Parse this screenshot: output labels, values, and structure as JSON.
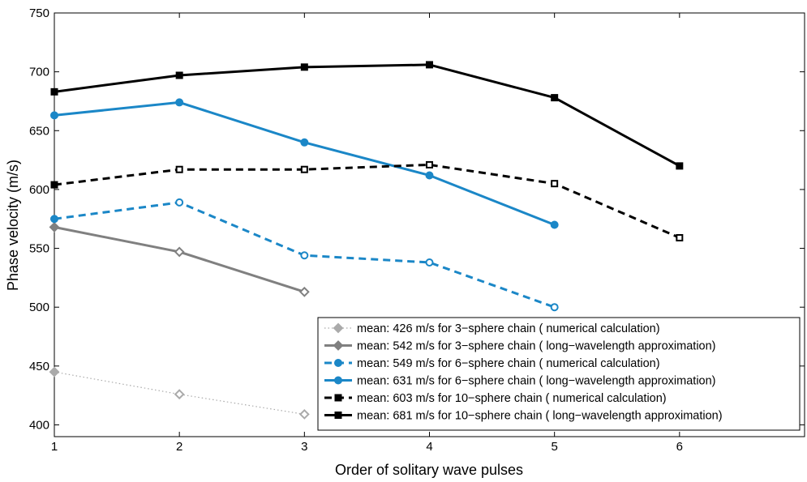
{
  "chart_data": {
    "type": "line",
    "title": "",
    "xlabel": "Order of solitary wave pulses",
    "ylabel": "Phase velocity (m/s)",
    "xlim": [
      1,
      7
    ],
    "ylim": [
      390,
      750
    ],
    "x_ticks": [
      "1",
      "2",
      "3",
      "4",
      "5",
      "6"
    ],
    "y_ticks": [
      "400",
      "450",
      "500",
      "550",
      "600",
      "650",
      "700",
      "750"
    ],
    "grid": false,
    "legend_position": "bottom-right",
    "series": [
      {
        "name": "mean: 426 m/s for 3−sphere chain ( numerical calculation)",
        "x": [
          1,
          2,
          3
        ],
        "y": [
          445,
          426,
          409
        ],
        "color": "#aaaaaa",
        "line_style": "dotted",
        "marker": "diamond"
      },
      {
        "name": "mean: 542 m/s for 3−sphere chain ( long−wavelength approximation)",
        "x": [
          1,
          2,
          3
        ],
        "y": [
          568,
          547,
          513
        ],
        "color": "#808080",
        "line_style": "solid",
        "marker": "diamond"
      },
      {
        "name": "mean: 549 m/s for 6−sphere chain ( numerical calculation)",
        "x": [
          1,
          2,
          3,
          4,
          5
        ],
        "y": [
          575,
          589,
          544,
          538,
          500
        ],
        "color": "#1b87c7",
        "line_style": "dashed",
        "marker": "circle"
      },
      {
        "name": "mean: 631 m/s for 6−sphere chain ( long−wavelength approximation)",
        "x": [
          1,
          2,
          3,
          4,
          5
        ],
        "y": [
          663,
          674,
          640,
          612,
          570
        ],
        "color": "#1b87c7",
        "line_style": "solid",
        "marker": "circle"
      },
      {
        "name": "mean: 603 m/s for 10−sphere chain ( numerical calculation)",
        "x": [
          1,
          2,
          3,
          4,
          5,
          6
        ],
        "y": [
          604,
          617,
          617,
          621,
          605,
          559
        ],
        "color": "#000000",
        "line_style": "dashed",
        "marker": "square"
      },
      {
        "name": "mean: 681 m/s for 10−sphere chain ( long−wavelength approximation)",
        "x": [
          1,
          2,
          3,
          4,
          5,
          6
        ],
        "y": [
          683,
          697,
          704,
          706,
          678,
          620
        ],
        "color": "#000000",
        "line_style": "solid",
        "marker": "square"
      }
    ]
  }
}
